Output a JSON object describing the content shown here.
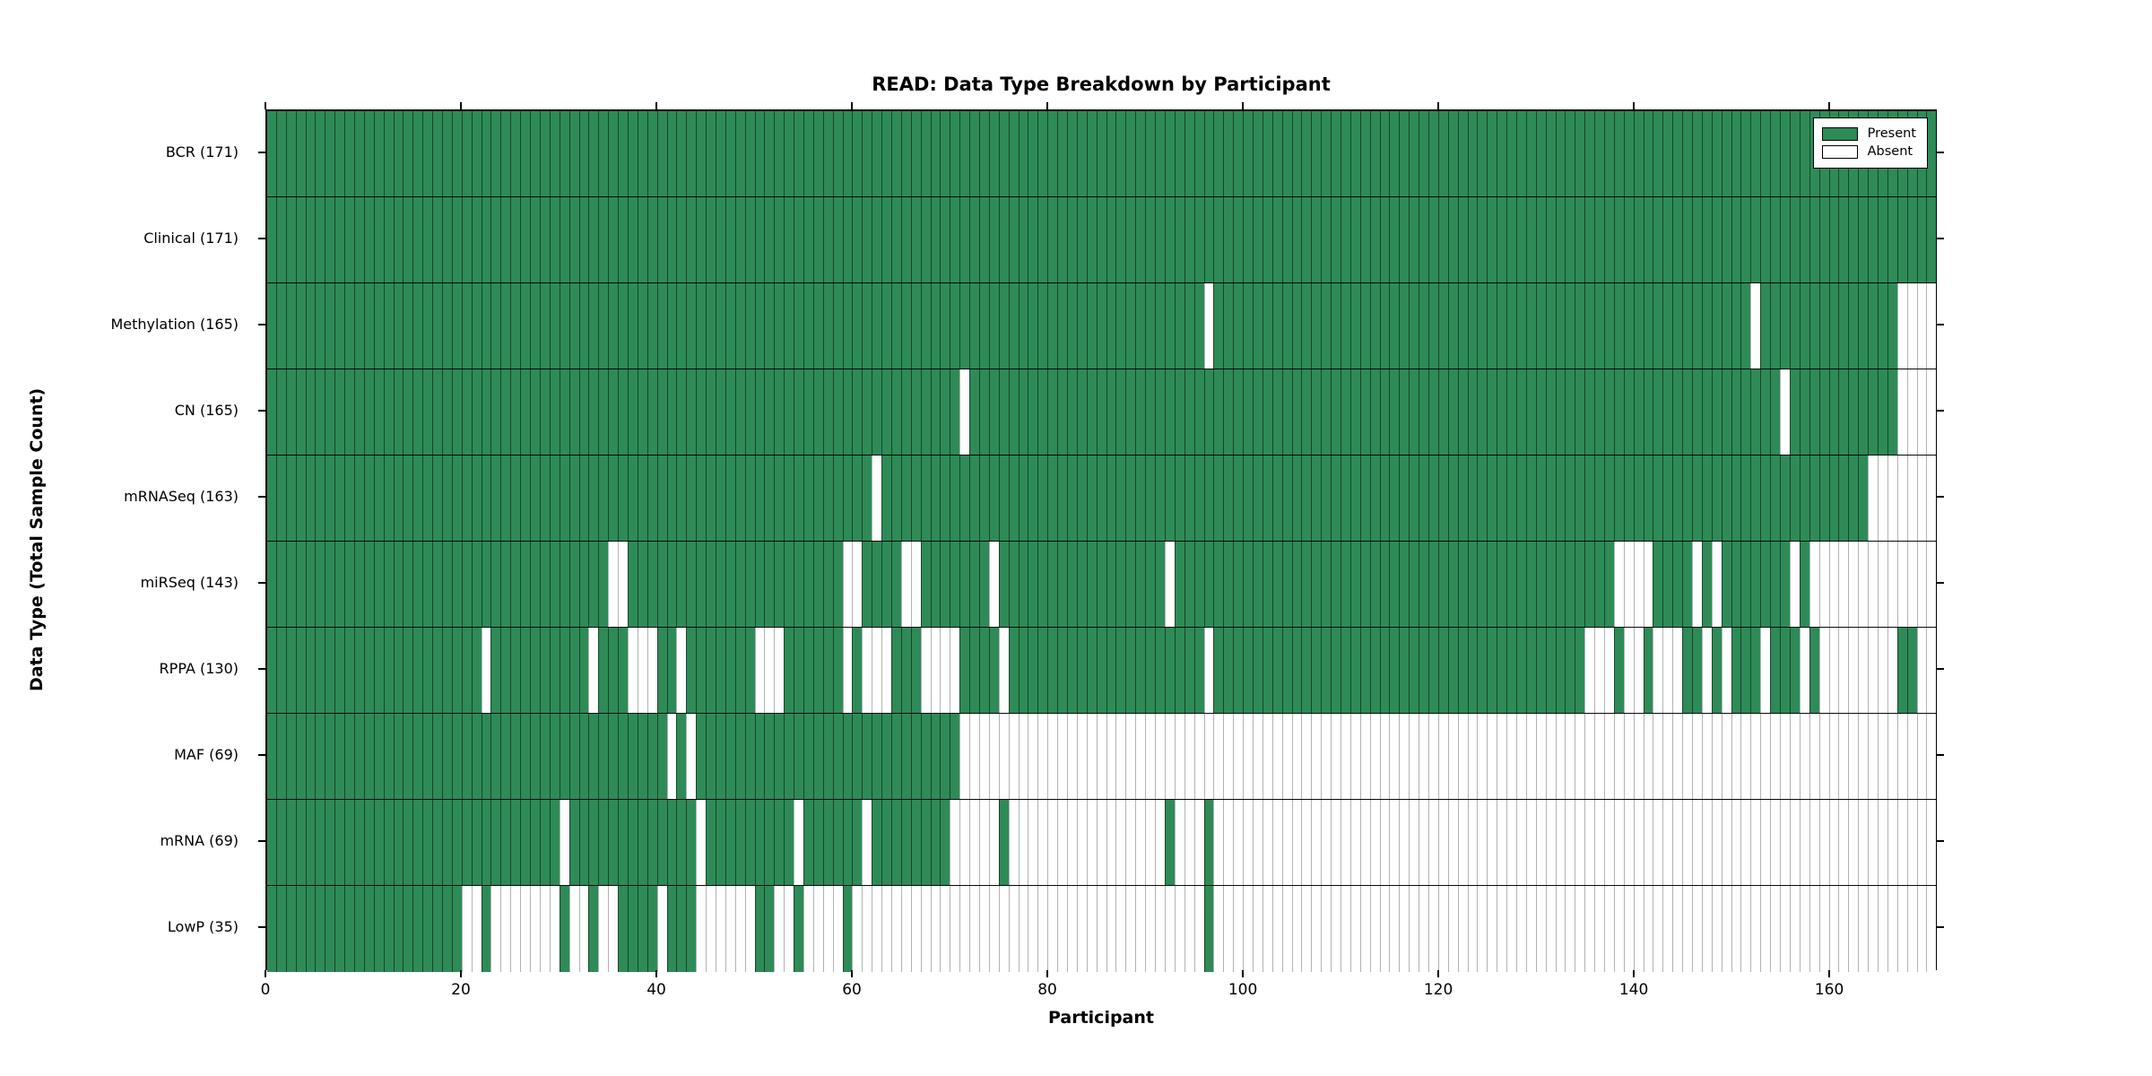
{
  "chart_data": {
    "type": "heatmap",
    "title": "READ: Data Type Breakdown by Participant",
    "xlabel": "Participant",
    "ylabel": "Data Type (Total Sample Count)",
    "n_participants": 171,
    "x_ticks": [
      0,
      20,
      40,
      60,
      80,
      100,
      120,
      140,
      160
    ],
    "x_range": [
      0,
      171
    ],
    "grid": false,
    "legend_position": "upper right",
    "colors": {
      "present": "#2e8b57",
      "absent": "#ffffff",
      "border": "#000000"
    },
    "legend": [
      {
        "label": "Present",
        "color": "#2e8b57"
      },
      {
        "label": "Absent",
        "color": "#ffffff"
      }
    ],
    "rows": [
      {
        "label": "BCR (171)",
        "data_type": "BCR",
        "total": 171,
        "absent_ranges": []
      },
      {
        "label": "Clinical (171)",
        "data_type": "Clinical",
        "total": 171,
        "absent_ranges": []
      },
      {
        "label": "Methylation (165)",
        "data_type": "Methylation",
        "total": 165,
        "absent_ranges": [
          [
            96,
            96
          ],
          [
            152,
            152
          ],
          [
            167,
            170
          ]
        ]
      },
      {
        "label": "CN (165)",
        "data_type": "CN",
        "total": 165,
        "absent_ranges": [
          [
            71,
            71
          ],
          [
            155,
            155
          ],
          [
            167,
            170
          ]
        ]
      },
      {
        "label": "mRNASeq (163)",
        "data_type": "mRNASeq",
        "total": 163,
        "absent_ranges": [
          [
            62,
            62
          ],
          [
            164,
            170
          ]
        ]
      },
      {
        "label": "miRSeq (143)",
        "data_type": "miRSeq",
        "total": 143,
        "absent_ranges": [
          [
            35,
            36
          ],
          [
            59,
            60
          ],
          [
            65,
            66
          ],
          [
            74,
            74
          ],
          [
            92,
            92
          ],
          [
            138,
            141
          ],
          [
            146,
            146
          ],
          [
            148,
            148
          ],
          [
            156,
            156
          ],
          [
            158,
            170
          ]
        ]
      },
      {
        "label": "RPPA (130)",
        "data_type": "RPPA",
        "total": 130,
        "absent_ranges": [
          [
            22,
            22
          ],
          [
            33,
            33
          ],
          [
            37,
            39
          ],
          [
            42,
            42
          ],
          [
            50,
            52
          ],
          [
            59,
            59
          ],
          [
            61,
            63
          ],
          [
            67,
            70
          ],
          [
            75,
            75
          ],
          [
            96,
            96
          ],
          [
            135,
            137
          ],
          [
            139,
            140
          ],
          [
            142,
            144
          ],
          [
            147,
            147
          ],
          [
            149,
            149
          ],
          [
            153,
            153
          ],
          [
            157,
            157
          ],
          [
            159,
            166
          ],
          [
            169,
            170
          ]
        ]
      },
      {
        "label": "MAF (69)",
        "data_type": "MAF",
        "total": 69,
        "absent_ranges": [
          [
            41,
            41
          ],
          [
            43,
            43
          ],
          [
            71,
            170
          ]
        ]
      },
      {
        "label": "mRNA (69)",
        "data_type": "mRNA",
        "total": 69,
        "absent_ranges": [
          [
            30,
            30
          ],
          [
            44,
            44
          ],
          [
            54,
            54
          ],
          [
            61,
            61
          ],
          [
            70,
            74
          ],
          [
            76,
            91
          ],
          [
            93,
            95
          ],
          [
            97,
            170
          ]
        ]
      },
      {
        "label": "LowP (35)",
        "data_type": "LowP",
        "total": 35,
        "absent_ranges": [
          [
            20,
            21
          ],
          [
            23,
            29
          ],
          [
            31,
            32
          ],
          [
            34,
            35
          ],
          [
            40,
            40
          ],
          [
            44,
            49
          ],
          [
            52,
            53
          ],
          [
            55,
            58
          ],
          [
            60,
            95
          ],
          [
            97,
            170
          ]
        ]
      }
    ]
  }
}
